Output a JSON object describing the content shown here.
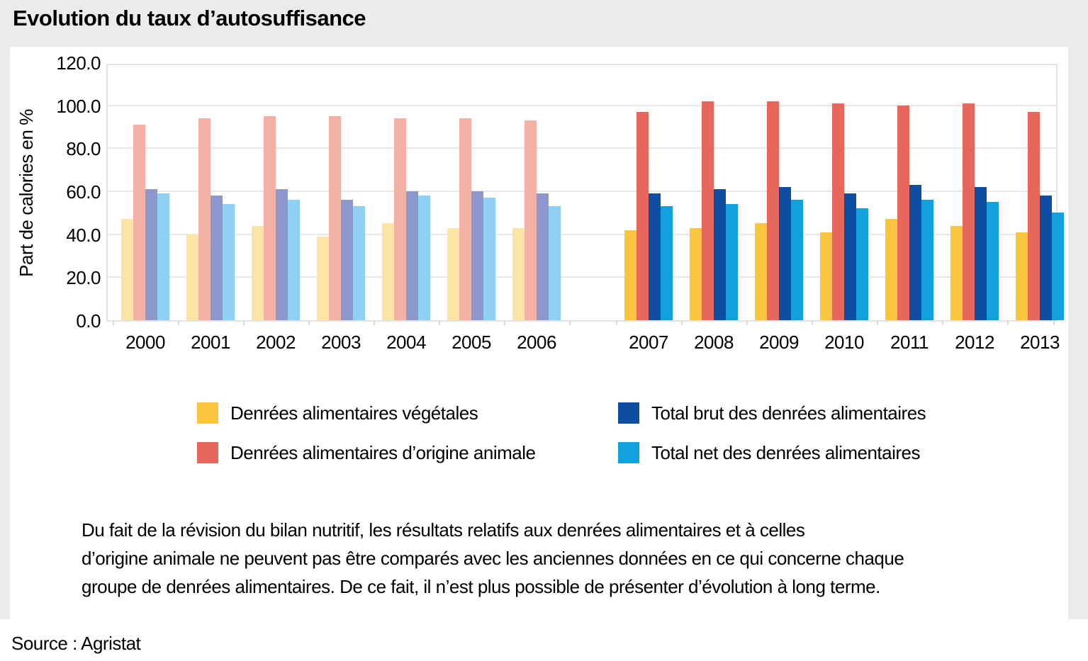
{
  "title": "Evolution du taux d’autosuffisance",
  "source": "Source : Agristat",
  "note_lines": [
    "Du fait de la révision du bilan nutritif, les résultats relatifs aux denrées alimentaires et à celles",
    "d’origine animale ne peuvent pas être comparés avec les anciennes données en ce qui concerne chaque",
    "groupe de denrées alimentaires. De ce fait, il n’est plus possible de présenter d’évolution à long terme."
  ],
  "colors": {
    "background_gray": "#EBEBEB",
    "panel_white": "#FFFFFF",
    "grid_gray": "#E7E7E7"
  },
  "chart_data": {
    "type": "bar",
    "title": "Evolution du taux d’autosuffisance",
    "xlabel": "",
    "ylabel": "Part de calories en %",
    "ylim": [
      0,
      120
    ],
    "ytick_step": 20,
    "ytick_labels": [
      "0.0",
      "20.0",
      "40.0",
      "60.0",
      "80.0",
      "100.0",
      "120.0"
    ],
    "grid": true,
    "legend_position": "bottom",
    "categories": [
      "2000",
      "2001",
      "2002",
      "2003",
      "2004",
      "2005",
      "2006",
      "2007",
      "2008",
      "2009",
      "2010",
      "2011",
      "2012",
      "2013"
    ],
    "faded_categories": [
      "2000",
      "2001",
      "2002",
      "2003",
      "2004",
      "2005",
      "2006"
    ],
    "gap_after_category": "2006",
    "series": [
      {
        "name": "Denrées alimentaires végétales",
        "color": "#FBC63D",
        "color_faded": "#FCE4A4",
        "values": [
          47,
          40,
          44,
          39,
          45,
          43,
          43,
          42,
          43,
          45,
          41,
          47,
          44,
          41
        ]
      },
      {
        "name": "Denrées alimentaires d’origine animale",
        "color": "#E8675C",
        "color_faded": "#F3B1A6",
        "values": [
          91,
          94,
          95,
          95,
          94,
          94,
          93,
          97,
          102,
          102,
          101,
          100,
          101,
          97
        ]
      },
      {
        "name": "Total brut des denrées alimentaires",
        "color": "#0D4DA2",
        "color_faded": "#8C97CE",
        "values": [
          61,
          58,
          61,
          56,
          60,
          60,
          59,
          59,
          61,
          62,
          59,
          63,
          62,
          58
        ]
      },
      {
        "name": "Total net des denrées alimentaires",
        "color": "#14A0DC",
        "color_faded": "#90D0F2",
        "values": [
          59,
          54,
          56,
          53,
          58,
          57,
          53,
          53,
          54,
          56,
          52,
          56,
          55,
          50
        ]
      }
    ]
  }
}
